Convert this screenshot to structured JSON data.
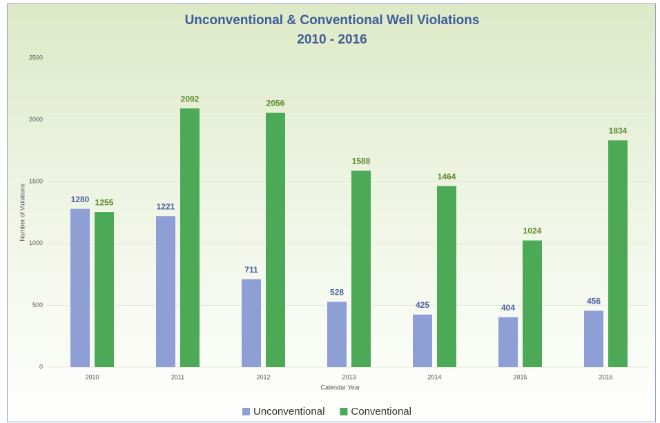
{
  "chart_data": {
    "type": "bar",
    "title": "Unconventional & Conventional Well Violations",
    "subtitle": "2010 - 2016",
    "x_label": "Calendar Year",
    "y_label": "Number of Violations",
    "categories": [
      "2010",
      "2011",
      "2012",
      "2013",
      "2014",
      "2015",
      "2016"
    ],
    "series": [
      {
        "name": "Unconventional",
        "color": "#8e9fd6",
        "label_color": "#4a5fa0",
        "values": [
          1280,
          1221,
          711,
          528,
          425,
          404,
          456
        ]
      },
      {
        "name": "Conventional",
        "color": "#4caa57",
        "label_color": "#5e8a2c",
        "values": [
          1255,
          2092,
          2056,
          1588,
          1464,
          1024,
          1834
        ]
      }
    ],
    "ylim": [
      0,
      2500
    ],
    "yticks": [
      0,
      500,
      1000,
      1500,
      2000,
      2500
    ],
    "grid": true,
    "legend": "bottom"
  }
}
